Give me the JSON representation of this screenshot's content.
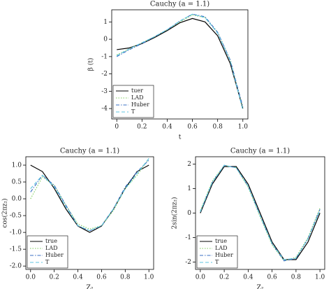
{
  "chart_data": [
    {
      "type": "line",
      "title": "Cauchy (a = 1.1)",
      "xlabel": "t",
      "ylabel": "β (t)",
      "x": [
        0,
        0.1,
        0.2,
        0.3,
        0.4,
        0.5,
        0.6,
        0.7,
        0.8,
        0.9,
        1.0
      ],
      "xlim": [
        -0.04,
        1.04
      ],
      "xticks": [
        0,
        0.2,
        0.4,
        0.6,
        0.8,
        {
          "value": 1,
          "label": "1.0"
        }
      ],
      "ylim": [
        -4.6,
        1.7
      ],
      "yticks": [
        1,
        0,
        -1,
        -2,
        -3,
        -4
      ],
      "legend": "lower left",
      "series": [
        {
          "name": "tuer",
          "color": "#000000",
          "linestyle": "solid",
          "values": [
            -0.6,
            -0.5,
            -0.25,
            0.1,
            0.5,
            0.95,
            1.2,
            1.0,
            0.2,
            -1.4,
            -4.0
          ]
        },
        {
          "name": "LAD",
          "color": "#7ccd5a",
          "linestyle": "dotted",
          "values": [
            -0.9,
            -0.55,
            -0.2,
            0.15,
            0.55,
            1.0,
            1.4,
            1.25,
            0.4,
            -1.2,
            -4.0
          ]
        },
        {
          "name": "Huber",
          "color": "#3a6fc4",
          "linestyle": "dashdot",
          "values": [
            -1.0,
            -0.6,
            -0.25,
            0.15,
            0.55,
            1.05,
            1.45,
            1.3,
            0.4,
            -1.2,
            -3.9
          ]
        },
        {
          "name": "T",
          "color": "#5fc4e0",
          "linestyle": "dashed",
          "values": [
            -0.95,
            -0.55,
            -0.2,
            0.15,
            0.55,
            1.05,
            1.45,
            1.25,
            0.35,
            -1.25,
            -4.1
          ]
        }
      ]
    },
    {
      "type": "line",
      "title": "Cauchy (a = 1.1)",
      "xlabel": "Z₂",
      "ylabel": "cos(2πz₂)",
      "x": [
        0,
        0.1,
        0.2,
        0.3,
        0.4,
        0.5,
        0.6,
        0.7,
        0.8,
        0.9,
        1.0
      ],
      "xlim": [
        -0.04,
        1.04
      ],
      "xticks": [
        {
          "value": 0,
          "label": "0.0"
        },
        0.2,
        0.4,
        0.6,
        0.8,
        {
          "value": 1,
          "label": "1.0"
        }
      ],
      "ylim": [
        -2.1,
        1.25
      ],
      "yticks": [
        {
          "value": 1,
          "label": "1.0"
        },
        0.5,
        {
          "value": 0,
          "label": "0.0"
        },
        -0.5,
        {
          "value": -1,
          "label": "-1.0"
        },
        -1.5,
        {
          "value": -2,
          "label": "-2.0"
        }
      ],
      "legend": "lower left",
      "series": [
        {
          "name": "true",
          "color": "#000000",
          "linestyle": "solid",
          "values": [
            1,
            0.81,
            0.31,
            -0.31,
            -0.81,
            -1,
            -0.81,
            -0.31,
            0.31,
            0.81,
            1
          ]
        },
        {
          "name": "LAD",
          "color": "#7ccd5a",
          "linestyle": "dotted",
          "values": [
            0,
            0.65,
            0.4,
            -0.2,
            -0.75,
            -0.9,
            -0.8,
            -0.35,
            0.3,
            0.7,
            1.2
          ]
        },
        {
          "name": "Huber",
          "color": "#3a6fc4",
          "linestyle": "dashdot",
          "values": [
            0.2,
            0.7,
            0.4,
            -0.2,
            -0.8,
            -0.95,
            -0.8,
            -0.3,
            0.35,
            0.8,
            1.15
          ]
        },
        {
          "name": "T",
          "color": "#5fc4e0",
          "linestyle": "dashed",
          "values": [
            0.3,
            0.7,
            0.35,
            -0.25,
            -0.8,
            -0.95,
            -0.8,
            -0.3,
            0.3,
            0.75,
            1.2
          ]
        }
      ]
    },
    {
      "type": "line",
      "title": "Cauchy (a = 1.1)",
      "xlabel": "Z₂",
      "ylabel": "2sin(2πz₂)",
      "x": [
        0,
        0.1,
        0.2,
        0.3,
        0.4,
        0.5,
        0.6,
        0.7,
        0.8,
        0.9,
        1.0
      ],
      "xlim": [
        -0.04,
        1.04
      ],
      "xticks": [
        {
          "value": 0,
          "label": "0.0"
        },
        0.2,
        0.4,
        0.6,
        0.8,
        {
          "value": 1,
          "label": "1.0"
        }
      ],
      "ylim": [
        -2.3,
        2.3
      ],
      "yticks": [
        2,
        1,
        0,
        -1,
        -2
      ],
      "legend": "lower left",
      "series": [
        {
          "name": "true",
          "color": "#000000",
          "linestyle": "solid",
          "values": [
            0,
            1.18,
            1.9,
            1.9,
            1.18,
            0,
            -1.18,
            -1.9,
            -1.9,
            -1.18,
            0
          ]
        },
        {
          "name": "LAD",
          "color": "#7ccd5a",
          "linestyle": "dotted",
          "values": [
            0.1,
            1.3,
            1.95,
            1.85,
            1.05,
            -0.15,
            -1.3,
            -1.95,
            -1.8,
            -1.0,
            0.2
          ]
        },
        {
          "name": "Huber",
          "color": "#3a6fc4",
          "linestyle": "dashdot",
          "values": [
            0.05,
            1.25,
            1.95,
            1.85,
            1.1,
            -0.1,
            -1.25,
            -1.95,
            -1.85,
            -1.05,
            0.15
          ]
        },
        {
          "name": "T",
          "color": "#5fc4e0",
          "linestyle": "dashed",
          "values": [
            0.05,
            1.25,
            1.95,
            1.85,
            1.1,
            -0.1,
            -1.25,
            -1.9,
            -1.85,
            -1.05,
            0.1
          ]
        }
      ]
    }
  ]
}
